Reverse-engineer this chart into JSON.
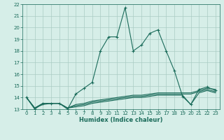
{
  "title": "",
  "xlabel": "Humidex (Indice chaleur)",
  "bg_color": "#d6eee8",
  "grid_color": "#aaccc4",
  "line_color": "#1a6b5a",
  "xlim": [
    -0.5,
    23.5
  ],
  "ylim": [
    13,
    22
  ],
  "yticks": [
    13,
    14,
    15,
    16,
    17,
    18,
    19,
    20,
    21,
    22
  ],
  "xticks": [
    0,
    1,
    2,
    3,
    4,
    5,
    6,
    7,
    8,
    9,
    10,
    11,
    12,
    13,
    14,
    15,
    16,
    17,
    18,
    19,
    20,
    21,
    22,
    23
  ],
  "main_x": [
    0,
    1,
    2,
    3,
    4,
    5,
    6,
    7,
    8,
    9,
    10,
    11,
    12,
    13,
    14,
    15,
    16,
    17,
    18,
    19,
    20,
    21,
    22,
    23
  ],
  "main_y": [
    14.0,
    13.0,
    13.5,
    13.5,
    13.5,
    13.0,
    14.3,
    14.8,
    15.3,
    18.0,
    19.2,
    19.2,
    21.7,
    18.0,
    18.5,
    19.5,
    19.8,
    18.0,
    16.3,
    14.1,
    13.4,
    14.7,
    14.9,
    14.6
  ],
  "flat1_x": [
    0,
    1,
    2,
    3,
    4,
    5,
    6,
    7,
    8,
    9,
    10,
    11,
    12,
    13,
    14,
    15,
    16,
    17,
    18,
    19,
    20,
    21,
    22,
    23
  ],
  "flat1_y": [
    14.0,
    13.1,
    13.4,
    13.5,
    13.5,
    13.1,
    13.2,
    13.3,
    13.5,
    13.6,
    13.7,
    13.8,
    13.9,
    14.0,
    14.0,
    14.1,
    14.2,
    14.2,
    14.2,
    14.2,
    13.4,
    14.4,
    14.6,
    14.4
  ],
  "flat2_x": [
    0,
    1,
    2,
    3,
    4,
    5,
    6,
    7,
    8,
    9,
    10,
    11,
    12,
    13,
    14,
    15,
    16,
    17,
    18,
    19,
    20,
    21,
    22,
    23
  ],
  "flat2_y": [
    14.0,
    13.1,
    13.5,
    13.5,
    13.5,
    13.1,
    13.3,
    13.4,
    13.6,
    13.7,
    13.8,
    13.9,
    14.0,
    14.1,
    14.1,
    14.2,
    14.3,
    14.3,
    14.3,
    14.3,
    14.3,
    14.5,
    14.7,
    14.5
  ],
  "flat3_x": [
    0,
    1,
    2,
    3,
    4,
    5,
    6,
    7,
    8,
    9,
    10,
    11,
    12,
    13,
    14,
    15,
    16,
    17,
    18,
    19,
    20,
    21,
    22,
    23
  ],
  "flat3_y": [
    14.0,
    13.1,
    13.5,
    13.5,
    13.5,
    13.1,
    13.4,
    13.5,
    13.7,
    13.8,
    13.9,
    14.0,
    14.1,
    14.2,
    14.2,
    14.3,
    14.4,
    14.4,
    14.4,
    14.4,
    14.4,
    14.6,
    14.8,
    14.7
  ]
}
